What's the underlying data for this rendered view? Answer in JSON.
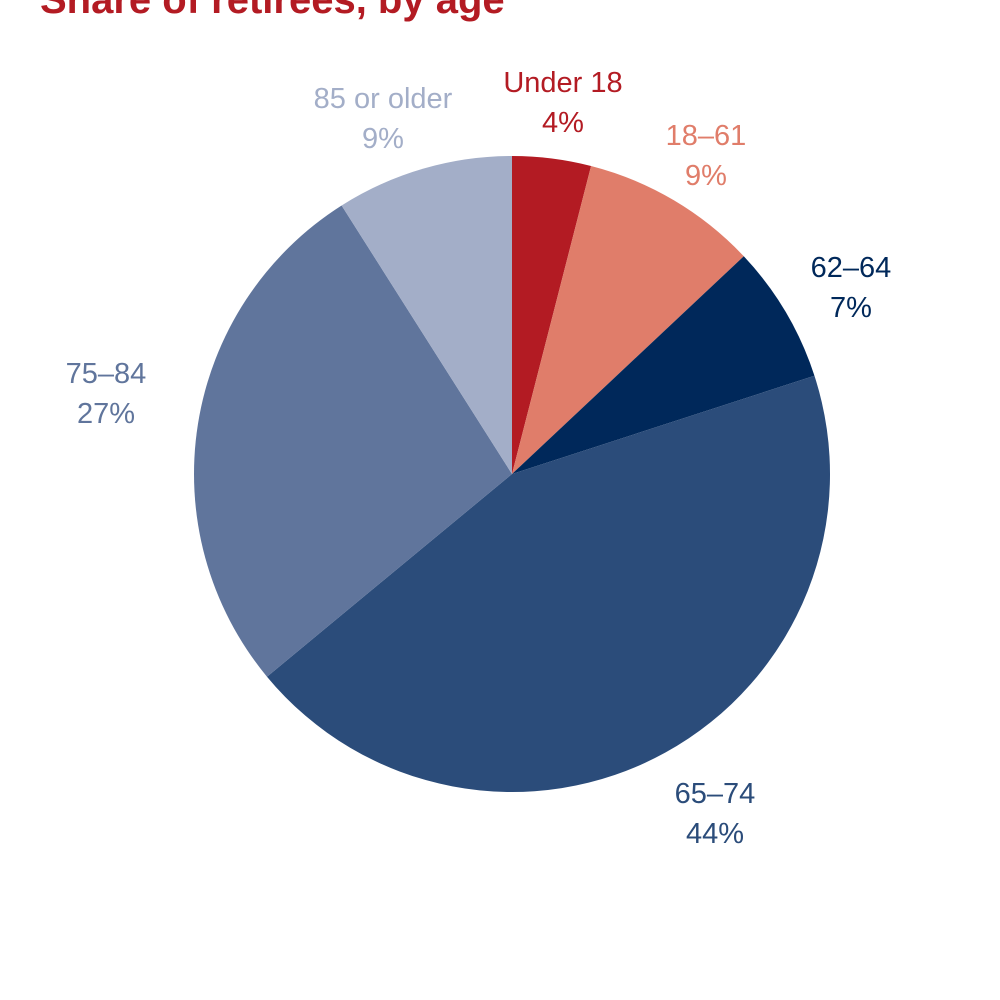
{
  "chart_data": {
    "type": "pie",
    "title": "Share of retirees, by age",
    "unit": "%",
    "slices": [
      {
        "label": "Under 18",
        "value": 4,
        "value_label": "4%",
        "color": "#b31b23"
      },
      {
        "label": "18–61",
        "value": 9,
        "value_label": "9%",
        "color": "#e07d6a"
      },
      {
        "label": "62–64",
        "value": 7,
        "value_label": "7%",
        "color": "#00285a"
      },
      {
        "label": "65–74",
        "value": 44,
        "value_label": "44%",
        "color": "#2b4c7a"
      },
      {
        "label": "75–84",
        "value": 27,
        "value_label": "27%",
        "color": "#60759c"
      },
      {
        "label": "85 or older",
        "value": 9,
        "value_label": "9%",
        "color": "#a3aec8"
      }
    ]
  }
}
